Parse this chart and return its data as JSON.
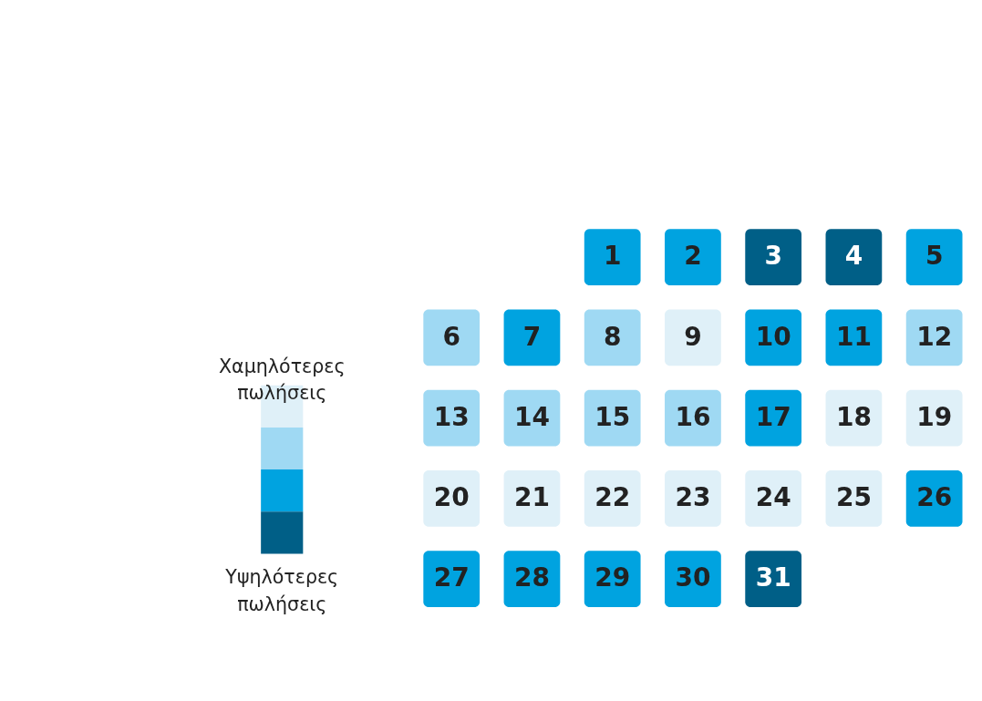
{
  "chart_data": {
    "type": "heatmap",
    "categories": [
      null,
      null,
      null,
      null,
      null,
      null,
      null
    ],
    "y_categories": [
      null,
      null,
      null,
      null,
      null
    ],
    "cells": [
      [
        null,
        null,
        1,
        2,
        3,
        4,
        5
      ],
      [
        6,
        7,
        8,
        9,
        10,
        11,
        12
      ],
      [
        13,
        14,
        15,
        16,
        17,
        18,
        19
      ],
      [
        20,
        21,
        22,
        23,
        24,
        25,
        26
      ],
      [
        27,
        28,
        29,
        30,
        31,
        null,
        null
      ]
    ],
    "colors": [
      [
        null,
        null,
        "#00a3e0",
        "#00a3e0",
        "#005f87",
        "#005f87",
        "#00a3e0"
      ],
      [
        "#9fd9f3",
        "#00a3e0",
        "#9fd9f3",
        "#dff0f8",
        "#00a3e0",
        "#00a3e0",
        "#9fd9f3"
      ],
      [
        "#9fd9f3",
        "#9fd9f3",
        "#9fd9f3",
        "#9fd9f3",
        "#00a3e0",
        "#dff0f8",
        "#dff0f8"
      ],
      [
        "#dff0f8",
        "#dff0f8",
        "#dff0f8",
        "#dff0f8",
        "#dff0f8",
        "#dff0f8",
        "#00a3e0"
      ],
      [
        "#00a3e0",
        "#00a3e0",
        "#00a3e0",
        "#00a3e0",
        "#005f87",
        null,
        null
      ]
    ],
    "data_labels": true,
    "annotations": [
      "Χαμηλότερες πωλήσεις",
      "Υψηλότερες πωλήσεις"
    ]
  }
}
